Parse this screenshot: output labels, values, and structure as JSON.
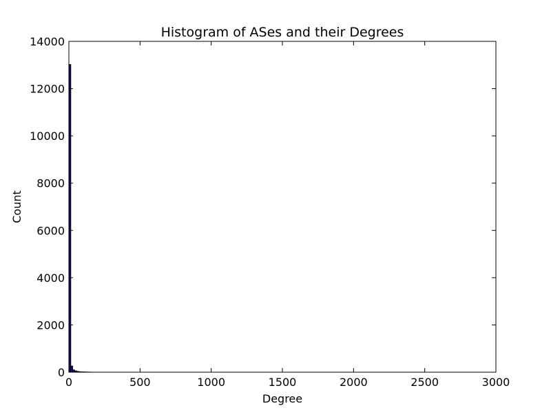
{
  "chart_data": {
    "type": "bar",
    "title": "Histogram of ASes and their Degrees",
    "xlabel": "Degree",
    "ylabel": "Count",
    "xlim": [
      0,
      3000
    ],
    "ylim": [
      0,
      14000
    ],
    "xticks": [
      "0",
      "500",
      "1000",
      "1500",
      "2000",
      "2500",
      "3000"
    ],
    "yticks": [
      "0",
      "2000",
      "4000",
      "6000",
      "8000",
      "10000",
      "12000",
      "14000"
    ],
    "grid": false,
    "legend": "none",
    "bar_color": "#0d0d7a",
    "bin_width": 13.3,
    "bins": [
      {
        "x": 0,
        "count": 13020
      },
      {
        "x": 13.3,
        "count": 260
      },
      {
        "x": 26.6,
        "count": 95
      },
      {
        "x": 39.9,
        "count": 55
      },
      {
        "x": 53.2,
        "count": 35
      },
      {
        "x": 66.5,
        "count": 22
      },
      {
        "x": 79.8,
        "count": 15
      },
      {
        "x": 93.1,
        "count": 12
      },
      {
        "x": 106.4,
        "count": 10
      },
      {
        "x": 119.7,
        "count": 6
      },
      {
        "x": 133.0,
        "count": 4
      },
      {
        "x": 146.3,
        "count": 3
      }
    ]
  }
}
